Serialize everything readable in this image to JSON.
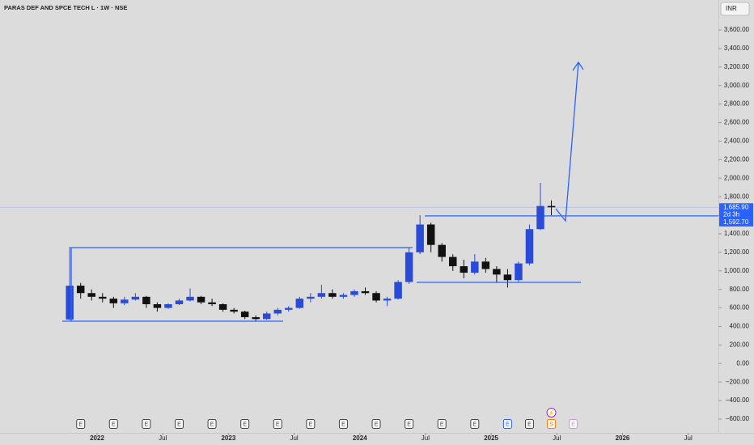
{
  "chart_data": {
    "type": "candlestick",
    "title": "PARAS DEF AND SPCE TECH L · 1W · NSE",
    "currency": "INR",
    "x": [
      "2021-10",
      "2021-11",
      "2021-12",
      "2022-01",
      "2022-02",
      "2022-03",
      "2022-04",
      "2022-05",
      "2022-06",
      "2022-07",
      "2022-08",
      "2022-09",
      "2022-10",
      "2022-11",
      "2022-12",
      "2023-01",
      "2023-02",
      "2023-03",
      "2023-04",
      "2023-05",
      "2023-06",
      "2023-07",
      "2023-08",
      "2023-09",
      "2023-10",
      "2023-11",
      "2023-12",
      "2024-01",
      "2024-02",
      "2024-03",
      "2024-04",
      "2024-05",
      "2024-06",
      "2024-07",
      "2024-08",
      "2024-09",
      "2024-10",
      "2024-11",
      "2024-12",
      "2025-01",
      "2025-02",
      "2025-03",
      "2025-04",
      "2025-05",
      "2025-06"
    ],
    "open": [
      475,
      840,
      760,
      720,
      700,
      650,
      690,
      720,
      640,
      600,
      640,
      680,
      720,
      660,
      640,
      580,
      560,
      500,
      480,
      540,
      580,
      600,
      700,
      720,
      760,
      720,
      740,
      780,
      760,
      680,
      700,
      880,
      1200,
      1500,
      1280,
      1150,
      1050,
      980,
      1100,
      1020,
      960,
      900,
      1080,
      1450,
      1700
    ],
    "high": [
      1260,
      870,
      800,
      760,
      720,
      720,
      760,
      730,
      660,
      650,
      700,
      810,
      730,
      700,
      650,
      600,
      570,
      520,
      560,
      600,
      620,
      720,
      760,
      850,
      800,
      760,
      800,
      820,
      780,
      720,
      900,
      1250,
      1600,
      1520,
      1300,
      1180,
      1120,
      1180,
      1140,
      1050,
      1020,
      1100,
      1500,
      1950,
      1760
    ],
    "low": [
      470,
      700,
      680,
      660,
      600,
      630,
      680,
      600,
      560,
      590,
      630,
      670,
      640,
      620,
      560,
      540,
      480,
      460,
      470,
      520,
      560,
      590,
      660,
      700,
      700,
      700,
      720,
      740,
      660,
      620,
      690,
      860,
      1180,
      1200,
      1100,
      1000,
      920,
      960,
      980,
      880,
      820,
      880,
      1060,
      1440,
      1600
    ],
    "close": [
      840,
      760,
      720,
      700,
      650,
      690,
      720,
      640,
      600,
      640,
      680,
      720,
      660,
      640,
      580,
      560,
      500,
      480,
      540,
      580,
      600,
      700,
      720,
      760,
      720,
      740,
      780,
      760,
      680,
      700,
      880,
      1200,
      1500,
      1280,
      1150,
      1050,
      980,
      1100,
      1020,
      960,
      900,
      1080,
      1450,
      1700,
      1685.9
    ],
    "up_color": "#2a4bd7",
    "down_color": "#111111",
    "xlim": [
      "2021-08",
      "2026-08"
    ],
    "xticks": [
      {
        "value": "2022-01",
        "label": "2022"
      },
      {
        "value": "2022-07",
        "label": "Jul"
      },
      {
        "value": "2023-01",
        "label": "2023"
      },
      {
        "value": "2023-07",
        "label": "Jul"
      },
      {
        "value": "2024-01",
        "label": "2024"
      },
      {
        "value": "2024-07",
        "label": "Jul"
      },
      {
        "value": "2025-01",
        "label": "2025"
      },
      {
        "value": "2025-07",
        "label": "Jul"
      },
      {
        "value": "2026-01",
        "label": "2026"
      },
      {
        "value": "2026-07",
        "label": "Jul"
      }
    ],
    "ylim": [
      -600,
      3600
    ],
    "yticks": [
      {
        "value": 3600,
        "label": "3,600.00"
      },
      {
        "value": 3400,
        "label": "3,400.00"
      },
      {
        "value": 3200,
        "label": "3,200.00"
      },
      {
        "value": 3000,
        "label": "3,000.00"
      },
      {
        "value": 2800,
        "label": "2,800.00"
      },
      {
        "value": 2600,
        "label": "2,600.00"
      },
      {
        "value": 2400,
        "label": "2,400.00"
      },
      {
        "value": 2200,
        "label": "2,200.00"
      },
      {
        "value": 2000,
        "label": "2,000.00"
      },
      {
        "value": 1800,
        "label": "1,800.00"
      },
      {
        "value": 1600,
        "label": "1,600.00"
      },
      {
        "value": 1400,
        "label": "1,400.00"
      },
      {
        "value": 1200,
        "label": "1,200.00"
      },
      {
        "value": 1000,
        "label": "1,000.00"
      },
      {
        "value": 800,
        "label": "800.00"
      },
      {
        "value": 600,
        "label": "600.00"
      },
      {
        "value": 400,
        "label": "400.00"
      },
      {
        "value": 200,
        "label": "200.00"
      },
      {
        "value": 0,
        "label": "0.00"
      },
      {
        "value": -200,
        "label": "−200.00"
      },
      {
        "value": -400,
        "label": "−400.00"
      },
      {
        "value": -600,
        "label": "−600.00"
      }
    ],
    "price_labels": [
      {
        "value": 1685.9,
        "label": "1,685.90",
        "sub": "2d 3h"
      },
      {
        "value": 1592.7,
        "label": "1,592.70"
      }
    ],
    "events": [
      {
        "x": "2021-11",
        "label": "E",
        "color": "#444444"
      },
      {
        "x": "2022-02",
        "label": "E",
        "color": "#444444"
      },
      {
        "x": "2022-05",
        "label": "E",
        "color": "#444444"
      },
      {
        "x": "2022-08",
        "label": "E",
        "color": "#444444"
      },
      {
        "x": "2022-11",
        "label": "E",
        "color": "#444444"
      },
      {
        "x": "2023-02",
        "label": "E",
        "color": "#444444"
      },
      {
        "x": "2023-05",
        "label": "E",
        "color": "#444444"
      },
      {
        "x": "2023-08",
        "label": "E",
        "color": "#444444"
      },
      {
        "x": "2023-11",
        "label": "E",
        "color": "#444444"
      },
      {
        "x": "2024-02",
        "label": "E",
        "color": "#444444"
      },
      {
        "x": "2024-05",
        "label": "E",
        "color": "#444444"
      },
      {
        "x": "2024-08",
        "label": "E",
        "color": "#444444"
      },
      {
        "x": "2024-11",
        "label": "E",
        "color": "#444444"
      },
      {
        "x": "2025-02",
        "label": "E",
        "color": "#2962ff"
      },
      {
        "x": "2025-04",
        "label": "E",
        "color": "#444444"
      },
      {
        "x": "2025-06",
        "label": "S",
        "color": "#f57c00"
      },
      {
        "x": "2025-06",
        "label": "⚡",
        "color": "#9c27b0"
      },
      {
        "x": "2025-08",
        "label": "E",
        "color": "#ce93d8"
      }
    ]
  }
}
